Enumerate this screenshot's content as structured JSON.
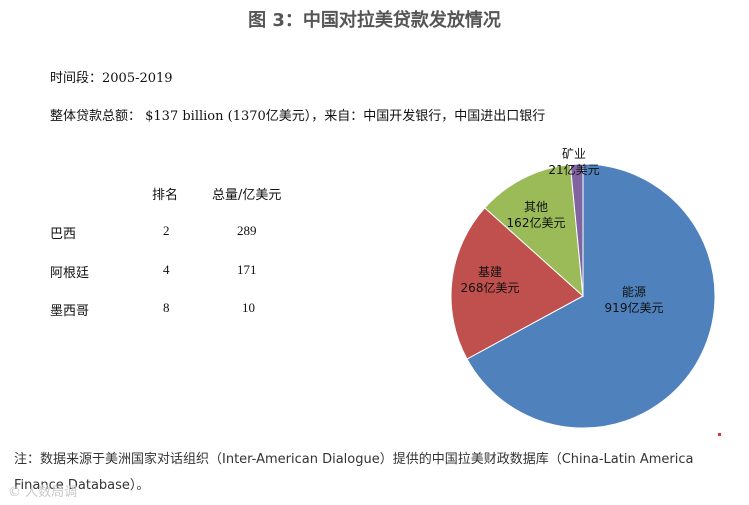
{
  "title": "图 3：中国对拉美贷款发放情况",
  "period_text": "时间段：2005-2019",
  "total_text": "整体贷款总额： $137 billion (1370亿美元），来自：中国开发银行，中国进出口银行",
  "table": {
    "headers": [
      "",
      "排名",
      "总量/亿美元"
    ],
    "rows": [
      {
        "country": "巴西",
        "rank": "2",
        "amount": "289"
      },
      {
        "country": "阿根廷",
        "rank": "4",
        "amount": "171"
      },
      {
        "country": "墨西哥",
        "rank": "8",
        "amount": "10"
      }
    ]
  },
  "chart_data": {
    "type": "pie",
    "unit": "亿美元",
    "slices": [
      {
        "name": "能源",
        "value": 919,
        "label": "919亿美元",
        "color": "#4f81bd"
      },
      {
        "name": "基建",
        "value": 268,
        "label": "268亿美元",
        "color": "#c0504d"
      },
      {
        "name": "其他",
        "value": 162,
        "label": "162亿美元",
        "color": "#9bbb59"
      },
      {
        "name": "矿业",
        "value": 21,
        "label": "21亿美元",
        "color": "#8064a2"
      }
    ]
  },
  "note": "注：数据来源于美洲国家对话组织（Inter-American Dialogue）提供的中国拉美财政数据库（China-Latin America Finance Database）。",
  "watermark": "© 人数局调"
}
